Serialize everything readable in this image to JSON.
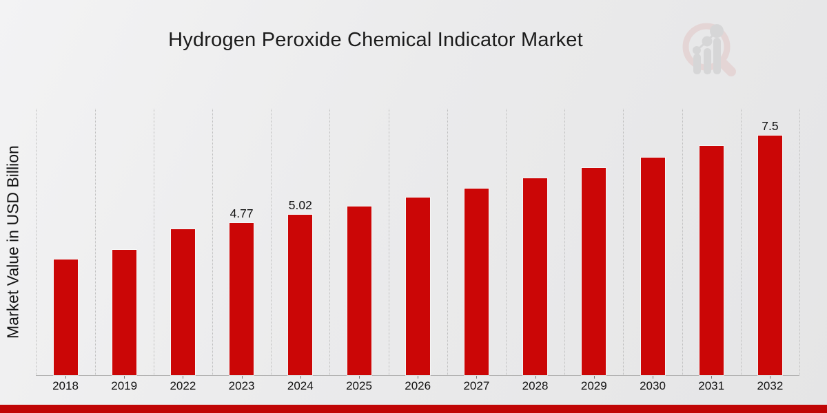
{
  "chart_data": {
    "type": "bar",
    "title": "Hydrogen Peroxide Chemical Indicator Market",
    "xlabel": "",
    "ylabel": "Market Value in USD Billion",
    "categories": [
      "2018",
      "2019",
      "2022",
      "2023",
      "2024",
      "2025",
      "2026",
      "2027",
      "2028",
      "2029",
      "2030",
      "2031",
      "2032"
    ],
    "values": [
      3.62,
      3.92,
      4.56,
      4.77,
      5.02,
      5.28,
      5.56,
      5.85,
      6.16,
      6.48,
      6.82,
      7.18,
      7.5
    ],
    "value_labels": {
      "2023": "4.77",
      "2024": "5.02",
      "2032": "7.5"
    },
    "ylim": [
      0,
      8.3
    ],
    "bar_color": "#cb0606",
    "grid": "vertical-dotted",
    "legend_position": "none"
  },
  "branding": {
    "logo_icon": "magnifier-bar-chart-logo",
    "logo_ring_color": "#e2c6c6",
    "logo_gray_color": "#c9c9ca",
    "footer_band_color": "#c00505"
  }
}
